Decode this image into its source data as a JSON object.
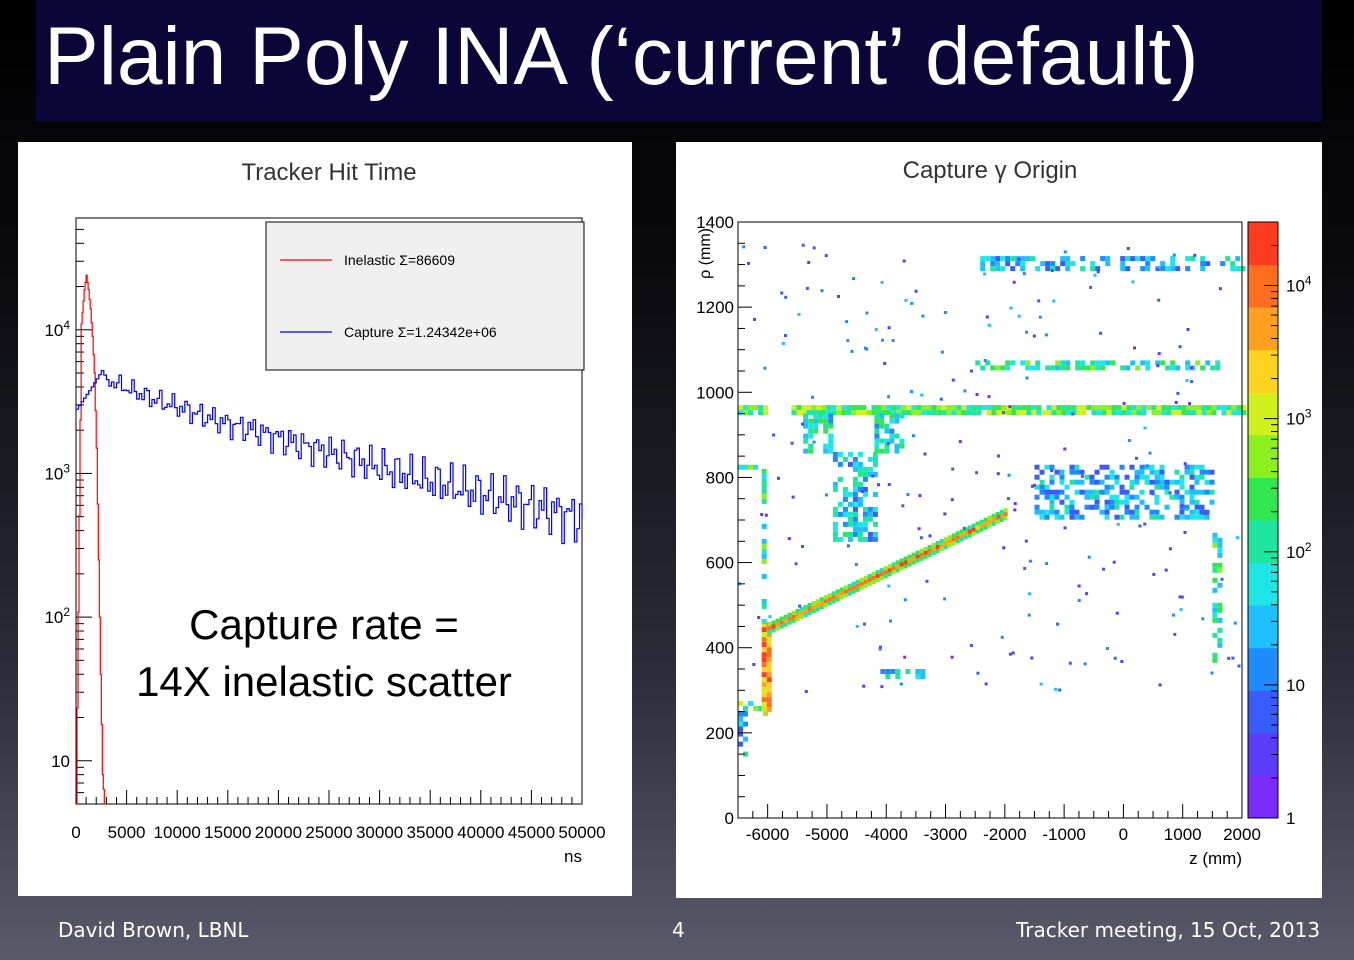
{
  "slide": {
    "title": "Plain Poly INA (‘current’ default)",
    "footer_left": "David Brown, LBNL",
    "footer_center": "4",
    "footer_right": "Tracker meeting,  15 Oct, 2013"
  },
  "chart_data": [
    {
      "type": "line",
      "title": "Tracker Hit Time",
      "xlabel": "ns",
      "ylabel": "",
      "xlim": [
        0,
        50000
      ],
      "ylim": [
        5,
        60000
      ],
      "yscale": "log",
      "x_tick_labels": [
        "0",
        "5000",
        "10000",
        "15000",
        "20000",
        "25000",
        "30000",
        "35000",
        "40000",
        "45000",
        "50000"
      ],
      "y_tick_labels": [
        "10",
        "10^2",
        "10^3",
        "10^4"
      ],
      "y_tick_values": [
        10,
        100,
        1000,
        10000
      ],
      "legend_position": "top-right",
      "annotation_line1": "Capture rate =",
      "annotation_line2": "14X inelastic scatter",
      "series": [
        {
          "name": "Inelastic",
          "legend_label": "Inelastic  Σ=86609",
          "color": "#ff0000",
          "x": [
            0,
            500,
            800,
            1000,
            1200,
            1400,
            1600,
            1800,
            2000,
            2200,
            2400,
            2600,
            2800
          ],
          "y": [
            5,
            11000,
            19000,
            24000,
            19000,
            14000,
            9000,
            5000,
            1500,
            250,
            40,
            8,
            5
          ]
        },
        {
          "name": "Capture",
          "legend_label": "Capture  Σ=1.24342e+06",
          "color": "#0000ff",
          "x": [
            0,
            1500,
            2500,
            3000,
            4000,
            5000,
            7500,
            10000,
            12500,
            15000,
            17500,
            20000,
            22500,
            25000,
            27500,
            30000,
            32500,
            35000,
            37500,
            40000,
            42500,
            45000,
            47500,
            50000
          ],
          "y": [
            2800,
            4000,
            5200,
            4500,
            4200,
            3900,
            3300,
            2900,
            2500,
            2200,
            2000,
            1750,
            1550,
            1400,
            1250,
            1100,
            980,
            880,
            800,
            720,
            650,
            590,
            530,
            480
          ]
        }
      ]
    },
    {
      "type": "heatmap",
      "title": "Capture γ Origin",
      "xlabel": "z (mm)",
      "ylabel": "ρ (mm)",
      "xlim": [
        -6500,
        2000
      ],
      "ylim": [
        0,
        1400
      ],
      "x_tick_labels": [
        "-6000",
        "-5000",
        "-4000",
        "-3000",
        "-2000",
        "-1000",
        "0",
        "1000",
        "2000"
      ],
      "x_tick_values": [
        -6000,
        -5000,
        -4000,
        -3000,
        -2000,
        -1000,
        0,
        1000,
        2000
      ],
      "y_tick_labels": [
        "0",
        "200",
        "400",
        "600",
        "800",
        "1000",
        "1200",
        "1400"
      ],
      "y_tick_values": [
        0,
        200,
        400,
        600,
        800,
        1000,
        1200,
        1400
      ],
      "zscale": "log",
      "zlim": [
        1,
        30000
      ],
      "colorbar_tick_labels": [
        "1",
        "10",
        "10^2",
        "10^3",
        "10^4"
      ],
      "colorbar_tick_values": [
        1,
        10,
        100,
        1000,
        10000
      ],
      "regions": [
        {
          "z": [
            -6500,
            -6000
          ],
          "rho": [
            950,
            970
          ],
          "level": 0.55
        },
        {
          "z": [
            -5600,
            2000
          ],
          "rho": [
            950,
            970
          ],
          "level": 0.55
        },
        {
          "z": [
            -5400,
            -4900
          ],
          "rho": [
            860,
            950
          ],
          "level": 0.4
        },
        {
          "z": [
            -4200,
            -3700
          ],
          "rho": [
            860,
            950
          ],
          "level": 0.4
        },
        {
          "z": [
            -4900,
            -4200
          ],
          "rho": [
            650,
            860
          ],
          "level": 0.35
        },
        {
          "z": [
            -2500,
            1600
          ],
          "rho": [
            1060,
            1075
          ],
          "level": 0.45
        },
        {
          "z": [
            -2500,
            2000
          ],
          "rho": [
            1290,
            1320
          ],
          "level": 0.3
        },
        {
          "z": [
            -6500,
            -6000
          ],
          "rho": [
            820,
            830
          ],
          "level": 0.45
        },
        {
          "z": [
            -6500,
            -6000
          ],
          "rho": [
            250,
            275
          ],
          "level": 0.5
        },
        {
          "z": [
            -6100,
            -6000
          ],
          "rho": [
            260,
            460
          ],
          "level": 0.85
        },
        {
          "z": [
            -6100,
            -6050
          ],
          "rho": [
            460,
            820
          ],
          "level": 0.45
        },
        {
          "z": [
            -1500,
            1500
          ],
          "rho": [
            710,
            830
          ],
          "level": 0.3
        },
        {
          "z": [
            1500,
            1600
          ],
          "rho": [
            370,
            670
          ],
          "level": 0.45
        },
        {
          "z": [
            -6500,
            -6400
          ],
          "rho": [
            150,
            250
          ],
          "level": 0.3
        },
        {
          "z": [
            -4100,
            -3300
          ],
          "rho": [
            330,
            350
          ],
          "level": 0.35
        }
      ],
      "ridge": {
        "z": [
          -6000,
          -2000
        ],
        "rho": [
          450,
          720
        ],
        "level": 0.8
      }
    }
  ]
}
